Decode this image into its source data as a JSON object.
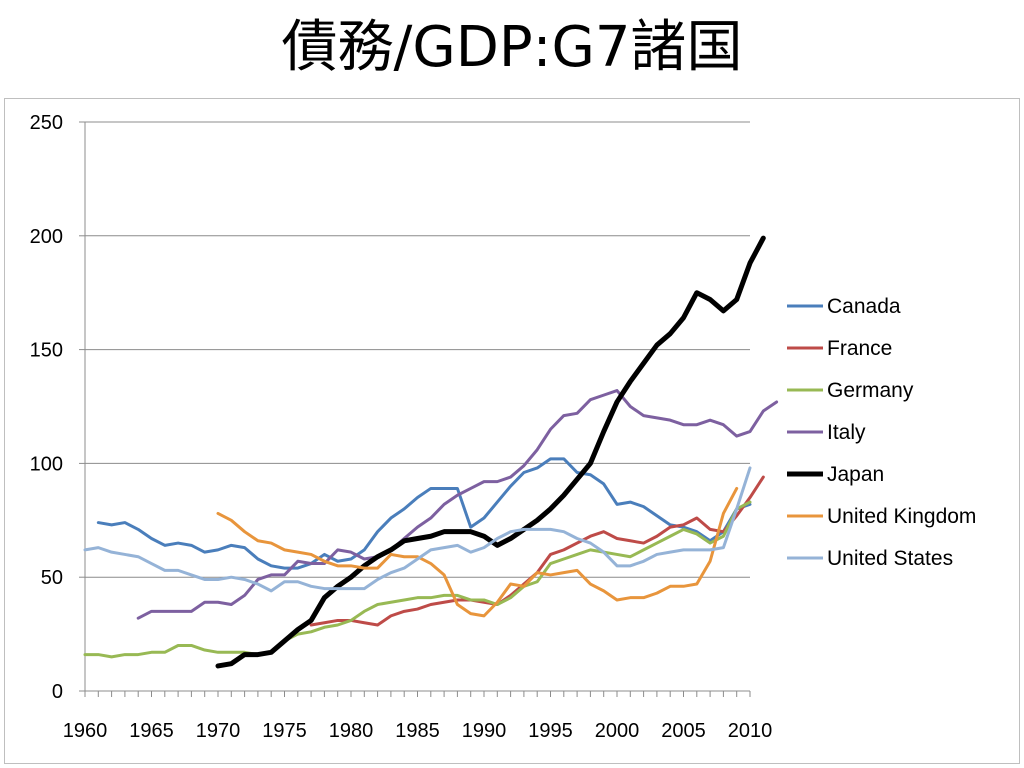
{
  "slide": {
    "title": "債務/GDP:G7諸国"
  },
  "chart_data": {
    "type": "line",
    "title": "債務/GDP:G7諸国",
    "xlabel": "",
    "ylabel": "",
    "xlim": [
      1960,
      2010
    ],
    "ylim": [
      0,
      250
    ],
    "grid": true,
    "legend_position": "right",
    "x_ticks": [
      1960,
      1965,
      1970,
      1975,
      1980,
      1985,
      1990,
      1995,
      2000,
      2005,
      2010
    ],
    "y_ticks": [
      0,
      50,
      100,
      150,
      200,
      250
    ],
    "series": [
      {
        "name": "Canada",
        "color": "#4a7ebb",
        "width": 3,
        "start": 1961,
        "values": [
          74,
          73,
          74,
          71,
          67,
          64,
          65,
          64,
          61,
          62,
          64,
          63,
          58,
          55,
          54,
          54,
          56,
          60,
          57,
          58,
          62,
          70,
          76,
          80,
          85,
          89,
          89,
          89,
          72,
          76,
          83,
          90,
          96,
          98,
          102,
          102,
          96,
          95,
          91,
          82,
          83,
          81,
          77,
          73,
          72,
          70,
          66,
          70,
          80,
          82
        ]
      },
      {
        "name": "France",
        "color": "#be4b48",
        "width": 3,
        "start": 1977,
        "values": [
          29,
          30,
          31,
          31,
          30,
          29,
          33,
          35,
          36,
          38,
          39,
          40,
          40,
          39,
          38,
          42,
          47,
          52,
          60,
          62,
          65,
          68,
          70,
          67,
          66,
          65,
          68,
          72,
          73,
          76,
          71,
          70,
          77,
          85,
          94
        ]
      },
      {
        "name": "Germany",
        "color": "#98b954",
        "width": 3,
        "start": 1960,
        "values": [
          16,
          16,
          15,
          16,
          16,
          17,
          17,
          20,
          20,
          18,
          17,
          17,
          17,
          16,
          17,
          22,
          25,
          26,
          28,
          29,
          31,
          35,
          38,
          39,
          40,
          41,
          41,
          42,
          42,
          40,
          40,
          38,
          41,
          46,
          48,
          56,
          58,
          60,
          62,
          61,
          60,
          59,
          62,
          65,
          68,
          71,
          69,
          65,
          68,
          80,
          83
        ]
      },
      {
        "name": "Italy",
        "color": "#7d60a0",
        "width": 3,
        "start": 1964,
        "values": [
          32,
          35,
          35,
          35,
          35,
          39,
          39,
          38,
          42,
          49,
          51,
          51,
          57,
          56,
          56,
          62,
          61,
          58,
          59,
          62,
          67,
          72,
          76,
          82,
          86,
          89,
          92,
          92,
          94,
          99,
          106,
          115,
          121,
          122,
          128,
          130,
          132,
          125,
          121,
          120,
          119,
          117,
          117,
          119,
          117,
          112,
          114,
          123,
          127
        ]
      },
      {
        "name": "Japan",
        "color": "#000000",
        "width": 5,
        "start": 1970,
        "values": [
          11,
          12,
          16,
          16,
          17,
          22,
          27,
          31,
          41,
          46,
          50,
          55,
          59,
          62,
          66,
          67,
          68,
          70,
          70,
          70,
          68,
          64,
          67,
          71,
          75,
          80,
          86,
          93,
          100,
          114,
          127,
          136,
          144,
          152,
          157,
          164,
          175,
          172,
          167,
          172,
          188,
          199
        ]
      },
      {
        "name": "United Kingdom",
        "color": "#e8953c",
        "width": 3,
        "start": 1970,
        "values": [
          78,
          75,
          70,
          66,
          65,
          62,
          61,
          60,
          57,
          55,
          55,
          54,
          54,
          60,
          59,
          59,
          56,
          51,
          38,
          34,
          33,
          39,
          47,
          46,
          52,
          51,
          52,
          53,
          47,
          44,
          40,
          41,
          41,
          43,
          46,
          46,
          47,
          57,
          78,
          89
        ]
      },
      {
        "name": "United States",
        "color": "#95b3d7",
        "width": 3,
        "start": 1960,
        "values": [
          62,
          63,
          61,
          60,
          59,
          56,
          53,
          53,
          51,
          49,
          49,
          50,
          49,
          47,
          44,
          48,
          48,
          46,
          45,
          45,
          45,
          45,
          49,
          52,
          54,
          58,
          62,
          63,
          64,
          61,
          63,
          67,
          70,
          71,
          71,
          71,
          70,
          67,
          65,
          61,
          55,
          55,
          57,
          60,
          61,
          62,
          62,
          62,
          63,
          80,
          98
        ]
      }
    ]
  }
}
